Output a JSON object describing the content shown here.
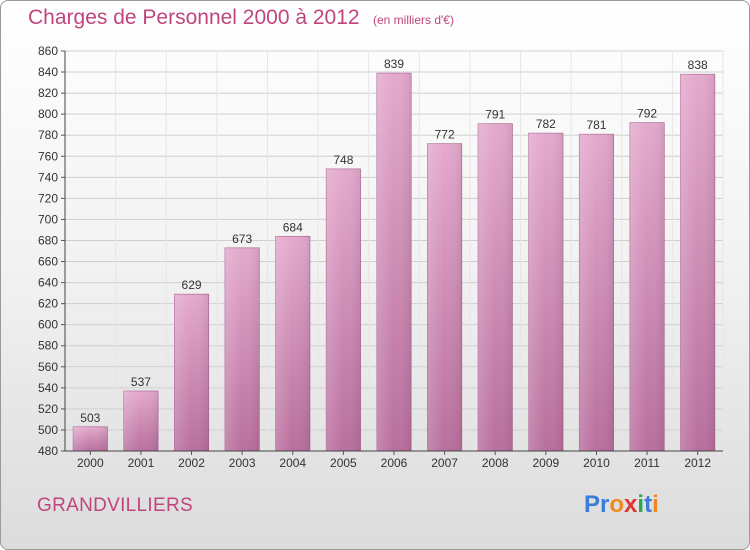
{
  "header": {
    "title": "Charges de Personnel 2000 à 2012",
    "unit_note": "(en milliers d'€)"
  },
  "footer": {
    "place": "GRANDVILLIERS",
    "logo_text": "Proxiti",
    "logo_letters": [
      {
        "ch": "P",
        "color": "#3b7dd8"
      },
      {
        "ch": "r",
        "color": "#3b7dd8"
      },
      {
        "ch": "o",
        "color": "#f08a1c"
      },
      {
        "ch": "x",
        "color": "#e0332f"
      },
      {
        "ch": "i",
        "color": "#2aa84a"
      },
      {
        "ch": "t",
        "color": "#3b7dd8"
      },
      {
        "ch": "i",
        "color": "#f08a1c"
      }
    ]
  },
  "colors": {
    "bar_top": "#e4a9cd",
    "bar_bottom": "#b86f9d",
    "title": "#c0457e",
    "grid": "#cfcfcf"
  },
  "chart_data": {
    "type": "bar",
    "title": "Charges de Personnel 2000 à 2012",
    "subtitle": "(en milliers d'€)",
    "xlabel": "",
    "ylabel": "",
    "categories": [
      "2000",
      "2001",
      "2002",
      "2003",
      "2004",
      "2005",
      "2006",
      "2007",
      "2008",
      "2009",
      "2010",
      "2011",
      "2012"
    ],
    "values": [
      503,
      537,
      629,
      673,
      684,
      748,
      839,
      772,
      791,
      782,
      781,
      792,
      838
    ],
    "ylim": [
      480,
      860
    ],
    "yticks": [
      480,
      500,
      520,
      540,
      560,
      580,
      600,
      620,
      640,
      660,
      680,
      700,
      720,
      740,
      760,
      780,
      800,
      820,
      840,
      860
    ],
    "grid": true,
    "data_labels": true
  }
}
